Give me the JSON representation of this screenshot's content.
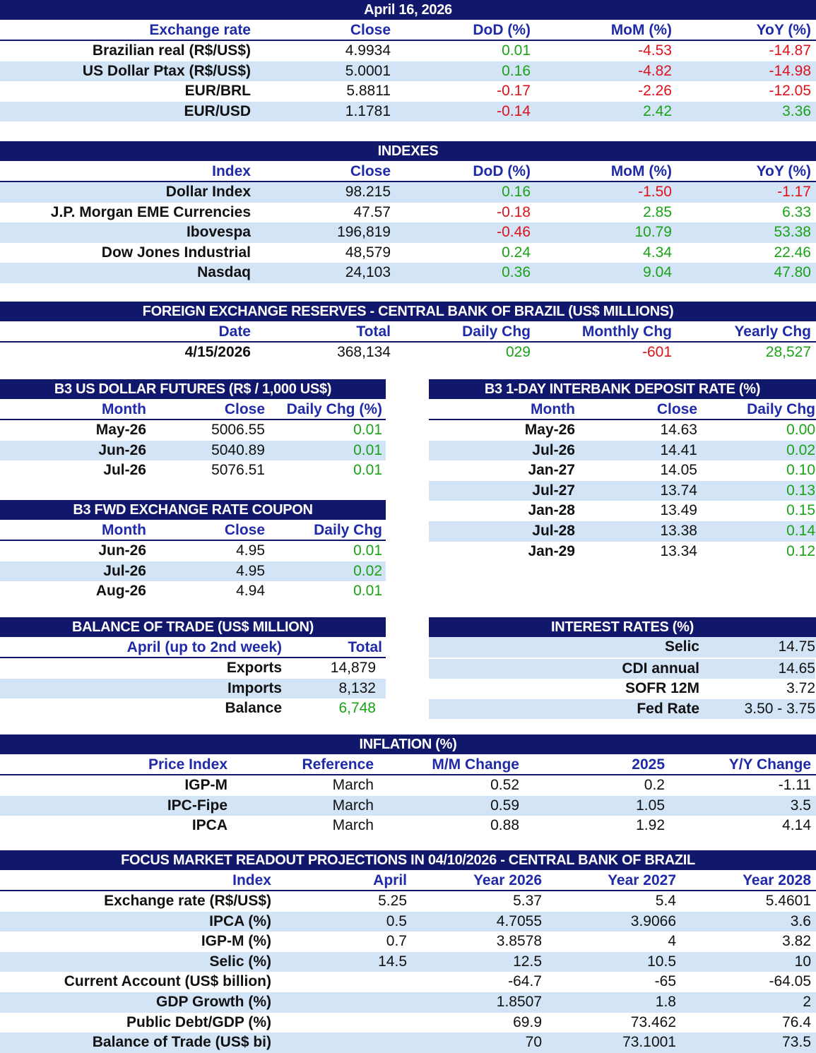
{
  "colors": {
    "header_bg": "#11176b",
    "header_text": "#1f2aa8",
    "stripe": "#d2e4f6",
    "positive": "#1aa316",
    "negative": "#e0111b"
  },
  "exchange": {
    "title": "April 16, 2026",
    "headers": [
      "Exchange rate",
      "Close",
      "DoD (%)",
      "MoM (%)",
      "YoY (%)"
    ],
    "rows": [
      [
        "Brazilian real (R$/US$)",
        "4.9934",
        "0.01",
        "-4.53",
        "-14.87"
      ],
      [
        "US Dollar Ptax (R$/US$)",
        "5.0001",
        "0.16",
        "-4.82",
        "-14.98"
      ],
      [
        "EUR/BRL",
        "5.8811",
        "-0.17",
        "-2.26",
        "-12.05"
      ],
      [
        "EUR/USD",
        "1.1781",
        "-0.14",
        "2.42",
        "3.36"
      ]
    ]
  },
  "indexes": {
    "title": "INDEXES",
    "headers": [
      "Index",
      "Close",
      "DoD (%)",
      "MoM (%)",
      "YoY (%)"
    ],
    "rows": [
      [
        "Dollar Index",
        "98.215",
        "0.16",
        "-1.50",
        "-1.17"
      ],
      [
        "J.P. Morgan EME Currencies",
        "47.57",
        "-0.18",
        "2.85",
        "6.33"
      ],
      [
        "Ibovespa",
        "196,819",
        "-0.46",
        "10.79",
        "53.38"
      ],
      [
        "Dow Jones Industrial",
        "48,579",
        "0.24",
        "4.34",
        "22.46"
      ],
      [
        "Nasdaq",
        "24,103",
        "0.36",
        "9.04",
        "47.80"
      ]
    ]
  },
  "reserves": {
    "title": "FOREIGN EXCHANGE RESERVES - CENTRAL BANK OF BRAZIL (US$ MILLIONS)",
    "headers": [
      "Date",
      "Total",
      "Daily Chg",
      "Monthly Chg",
      "Yearly Chg"
    ],
    "rows": [
      [
        "4/15/2026",
        "368,134",
        "029",
        "-601",
        "28,527"
      ]
    ]
  },
  "futures": {
    "title": "B3 US DOLLAR FUTURES (R$ / 1,000 US$)",
    "headers": [
      "Month",
      "Close",
      "Daily Chg (%)"
    ],
    "rows": [
      [
        "May-26",
        "5006.55",
        "0.01"
      ],
      [
        "Jun-26",
        "5040.89",
        "0.01"
      ],
      [
        "Jul-26",
        "5076.51",
        "0.01"
      ]
    ]
  },
  "coupon": {
    "title": "B3 FWD EXCHANGE RATE COUPON",
    "headers": [
      "Month",
      "Close",
      "Daily Chg"
    ],
    "rows": [
      [
        "Jun-26",
        "4.95",
        "0.01"
      ],
      [
        "Jul-26",
        "4.95",
        "0.02"
      ],
      [
        "Aug-26",
        "4.94",
        "0.01"
      ]
    ]
  },
  "di": {
    "title": "B3 1-DAY INTERBANK DEPOSIT RATE (%)",
    "headers": [
      "Month",
      "Close",
      "Daily Chg"
    ],
    "rows": [
      [
        "May-26",
        "14.63",
        "0.00"
      ],
      [
        "Jul-26",
        "14.41",
        "0.02"
      ],
      [
        "Jan-27",
        "14.05",
        "0.10"
      ],
      [
        "Jul-27",
        "13.74",
        "0.13"
      ],
      [
        "Jan-28",
        "13.49",
        "0.15"
      ],
      [
        "Jul-28",
        "13.38",
        "0.14"
      ],
      [
        "Jan-29",
        "13.34",
        "0.12"
      ]
    ]
  },
  "trade": {
    "title": "BALANCE OF TRADE (US$ MILLION)",
    "headers": [
      "April (up to 2nd week)",
      "Total"
    ],
    "rows": [
      [
        "Exports",
        "14,879"
      ],
      [
        "Imports",
        "8,132"
      ],
      [
        "Balance",
        "6,748"
      ]
    ]
  },
  "rates": {
    "title": "INTEREST RATES (%)",
    "rows": [
      [
        "Selic",
        "14.75"
      ],
      [
        "CDI annual",
        "14.65"
      ],
      [
        "SOFR 12M",
        "3.72"
      ],
      [
        "Fed Rate",
        "3.50 - 3.75"
      ]
    ]
  },
  "inflation": {
    "title": "INFLATION (%)",
    "headers": [
      "Price Index",
      "Reference",
      "M/M Change",
      "2025",
      "Y/Y Change"
    ],
    "rows": [
      [
        "IGP-M",
        "March",
        "0.52",
        "0.2",
        "-1.11"
      ],
      [
        "IPC-Fipe",
        "March",
        "0.59",
        "1.05",
        "3.5"
      ],
      [
        "IPCA",
        "March",
        "0.88",
        "1.92",
        "4.14"
      ]
    ]
  },
  "focus": {
    "title": "FOCUS MARKET READOUT PROJECTIONS IN 04/10/2026 - CENTRAL BANK OF BRAZIL",
    "headers": [
      "Index",
      "April",
      "Year 2026",
      "Year 2027",
      "Year 2028"
    ],
    "rows": [
      [
        "Exchange rate (R$/US$)",
        "5.25",
        "5.37",
        "5.4",
        "5.4601"
      ],
      [
        "IPCA (%)",
        "0.5",
        "4.7055",
        "3.9066",
        "3.6"
      ],
      [
        "IGP-M (%)",
        "0.7",
        "3.8578",
        "4",
        "3.82"
      ],
      [
        "Selic (%)",
        "14.5",
        "12.5",
        "10.5",
        "10"
      ],
      [
        "Current Account (US$ billion)",
        "",
        "-64.7",
        "-65",
        "-64.05"
      ],
      [
        "GDP Growth (%)",
        "",
        "1.8507",
        "1.8",
        "2"
      ],
      [
        "Public Debt/GDP (%)",
        "",
        "69.9",
        "73.462",
        "76.4"
      ],
      [
        "Balance of Trade (US$ bi)",
        "",
        "70",
        "73.1001",
        "73.5"
      ]
    ]
  }
}
